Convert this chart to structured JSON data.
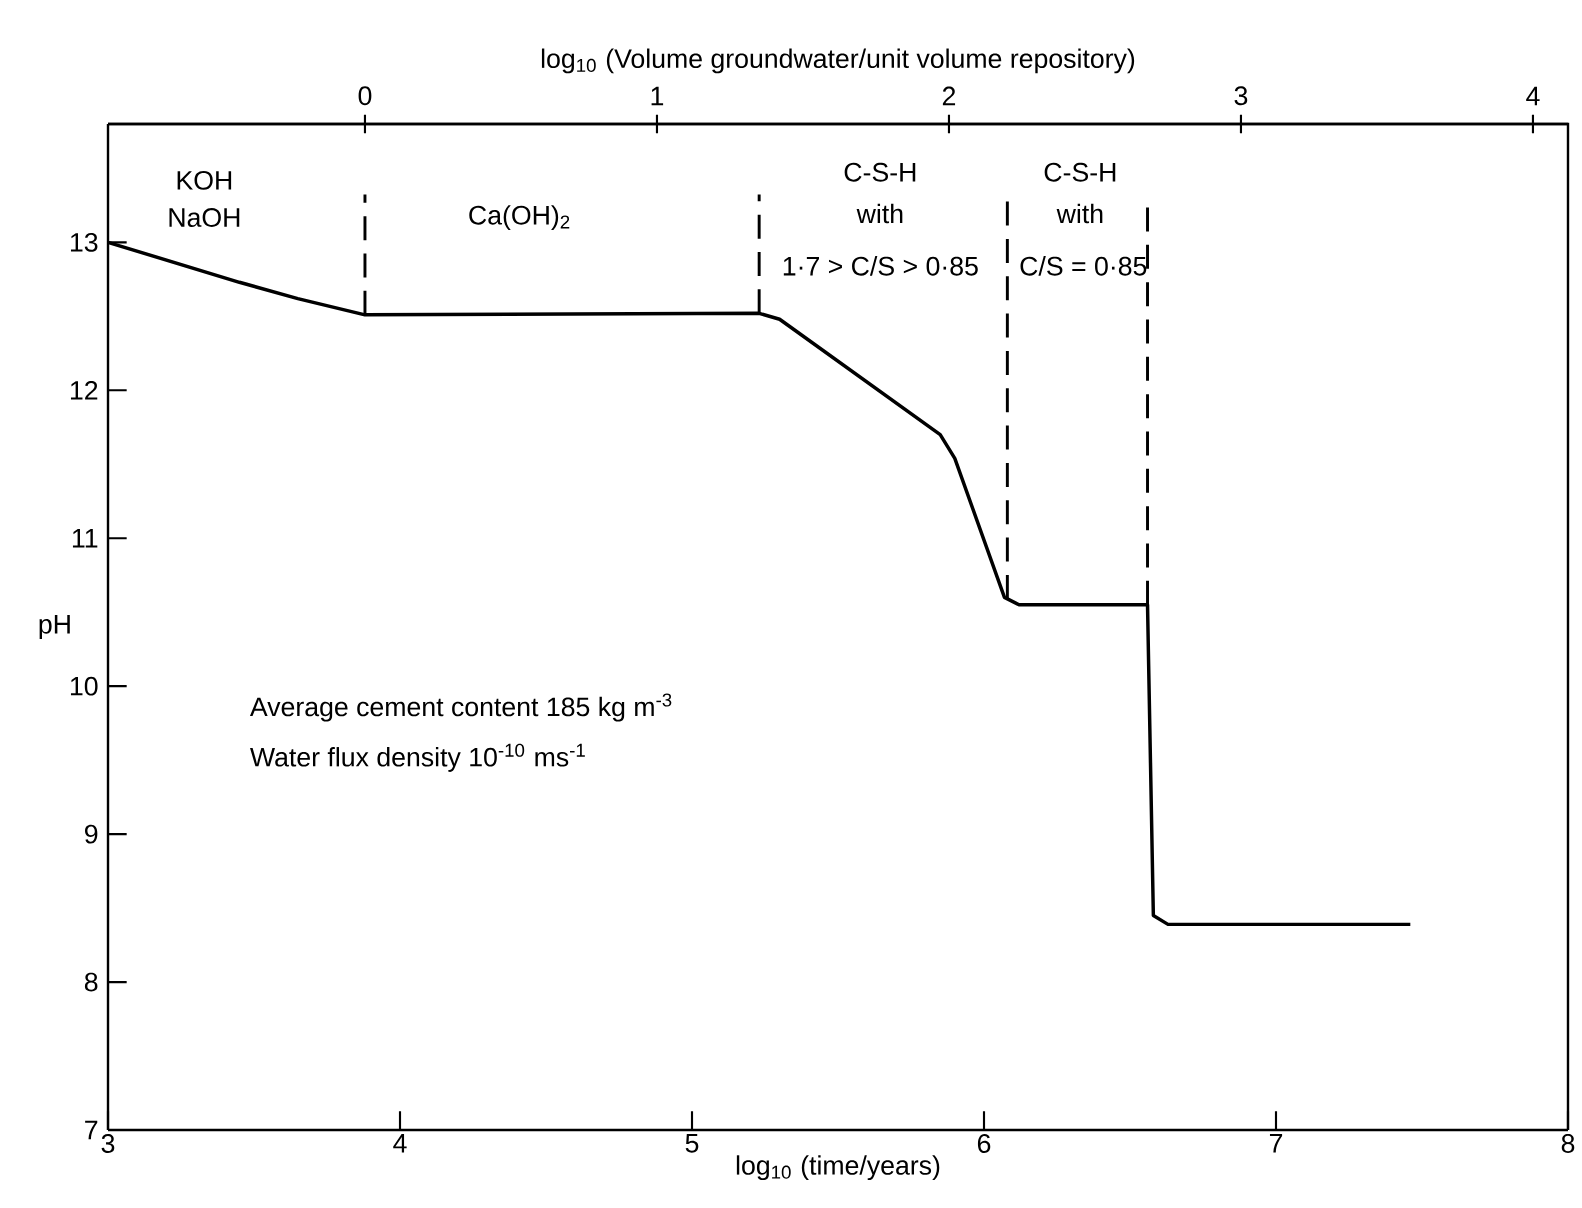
{
  "chart_data": {
    "type": "line",
    "xlabel": "log$_{10}$ (time/years)",
    "ylabel": "pH",
    "x2label": "log$_{10}$ (Volume groundwater/unit volume repository)",
    "xlim": [
      3,
      8
    ],
    "xticks": [
      3,
      4,
      5,
      6,
      7,
      8
    ],
    "x2lim": [
      -0.88,
      4.12
    ],
    "x2ticks": [
      0,
      1,
      2,
      3,
      4
    ],
    "ylim": [
      7,
      13.8
    ],
    "yticks": [
      7,
      8,
      9,
      10,
      11,
      12,
      13
    ],
    "grid": false,
    "marker": "none",
    "line_style": "solid",
    "series": [
      {
        "color": "#000000",
        "x": [
          3.0,
          3.45,
          3.65,
          3.88,
          5.23,
          5.3,
          5.85,
          5.9,
          6.07,
          6.12,
          6.56,
          6.58,
          6.63,
          7.46
        ],
        "values": [
          13.0,
          12.73,
          12.62,
          12.51,
          12.52,
          12.48,
          11.7,
          11.54,
          10.6,
          10.55,
          10.55,
          8.45,
          8.39,
          8.39
        ]
      }
    ],
    "ref_lines": [
      {
        "axis": "x",
        "value": 3.88,
        "line_style": "dashed",
        "color": "#000000"
      },
      {
        "axis": "x",
        "value": 5.23,
        "line_style": "dashed",
        "color": "#000000"
      },
      {
        "axis": "x",
        "value": 6.08,
        "line_style": "dashed",
        "color": "#000000"
      },
      {
        "axis": "x",
        "value": 6.56,
        "line_style": "dashed",
        "color": "#000000"
      }
    ],
    "annotations": [
      "KOH",
      "NaOH",
      "Ca(OH)$_{2}$",
      "C-S-H",
      "with",
      "1·7 > C/S > 0·85",
      "C-S-H",
      "with",
      "C/S = 0·85",
      "Average cement content 185 kg m$^{-3}$",
      "Water flux density 10$^{-10}$ ms$^{-1}$"
    ]
  }
}
